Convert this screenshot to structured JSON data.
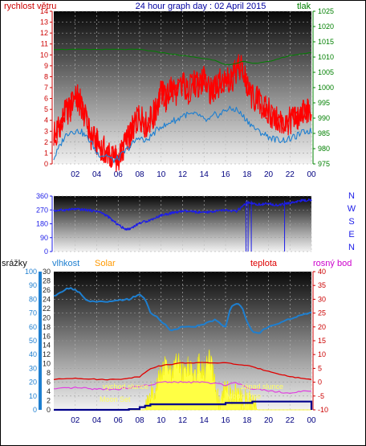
{
  "chart_data": [
    {
      "type": "line",
      "title": "24 hour graph day : 02 April 2015",
      "left_label": "rychlost větru",
      "right_label": "tlak",
      "x_ticks": [
        "02",
        "04",
        "06",
        "08",
        "10",
        "12",
        "14",
        "16",
        "18",
        "20",
        "22",
        "00"
      ],
      "ylim_left": [
        0,
        14
      ],
      "y_ticks_left": [
        0,
        1,
        2,
        3,
        4,
        5,
        6,
        7,
        8,
        9,
        10,
        11,
        12,
        13,
        14
      ],
      "ylim_right": [
        975,
        1025
      ],
      "y_ticks_right": [
        975,
        980,
        985,
        990,
        995,
        1000,
        1005,
        1010,
        1015,
        1020,
        1025
      ],
      "series": [
        {
          "key": "gust",
          "color": "#ff0000",
          "axis": "left",
          "x": [
            0.0,
            0.5,
            1.0,
            1.5,
            2.0,
            2.5,
            3.0,
            3.5,
            4.0,
            4.5,
            5.0,
            5.5,
            6.0,
            6.5,
            7.0,
            7.5,
            8.0,
            8.5,
            9.0,
            9.5,
            10.0,
            10.5,
            11.0,
            11.5,
            12.0,
            12.5,
            13.0,
            13.5,
            14.0,
            14.5,
            15.0,
            15.5,
            16.0,
            16.5,
            17.0,
            17.5,
            18.0,
            18.5,
            19.0,
            19.5,
            20.0,
            20.5,
            21.0,
            21.5,
            22.0,
            22.5,
            23.0,
            23.5,
            24.0
          ],
          "values": [
            2.5,
            3.5,
            4.5,
            5.0,
            6.5,
            5.5,
            4.0,
            2.5,
            2.0,
            1.5,
            1.0,
            0.5,
            0.5,
            1.5,
            2.5,
            3.5,
            4.5,
            3.5,
            4.0,
            5.0,
            6.5,
            6.0,
            7.0,
            6.5,
            7.5,
            6.5,
            7.5,
            7.0,
            8.0,
            6.5,
            7.0,
            7.5,
            8.0,
            7.5,
            8.5,
            9.0,
            7.0,
            6.0,
            6.0,
            5.0,
            5.0,
            4.0,
            4.0,
            3.5,
            4.0,
            4.0,
            4.5,
            5.0,
            4.0
          ]
        },
        {
          "key": "wind",
          "color": "#1e7fd0",
          "axis": "left",
          "x": [
            0.0,
            0.5,
            1.0,
            1.5,
            2.0,
            2.5,
            3.0,
            3.5,
            4.0,
            4.5,
            5.0,
            5.5,
            6.0,
            6.5,
            7.0,
            7.5,
            8.0,
            8.5,
            9.0,
            9.5,
            10.0,
            10.5,
            11.0,
            11.5,
            12.0,
            12.5,
            13.0,
            13.5,
            14.0,
            14.5,
            15.0,
            15.5,
            16.0,
            16.5,
            17.0,
            17.5,
            18.0,
            18.5,
            19.0,
            19.5,
            20.0,
            20.5,
            21.0,
            21.5,
            22.0,
            22.5,
            23.0,
            23.5,
            24.0
          ],
          "values": [
            0.5,
            1.5,
            2.5,
            3.0,
            3.0,
            3.0,
            2.5,
            2.0,
            1.0,
            0.8,
            0.8,
            0.3,
            0.5,
            1.0,
            1.5,
            2.0,
            2.5,
            2.0,
            2.5,
            3.0,
            3.5,
            3.5,
            4.0,
            4.0,
            4.5,
            4.5,
            4.5,
            4.5,
            4.0,
            4.0,
            4.5,
            4.5,
            5.0,
            5.0,
            5.0,
            4.5,
            4.0,
            3.5,
            3.0,
            2.8,
            2.5,
            2.3,
            2.2,
            2.2,
            2.3,
            2.5,
            2.8,
            3.0,
            3.0
          ]
        },
        {
          "key": "pressure",
          "color": "#008000",
          "axis": "right",
          "x": [
            0,
            2,
            4,
            6,
            8,
            10,
            12,
            14,
            15,
            16,
            16.5,
            17,
            17.5,
            18,
            18.5,
            19,
            20,
            21,
            22,
            23,
            24
          ],
          "values": [
            1012.5,
            1012.5,
            1012.5,
            1012.5,
            1012.5,
            1011.5,
            1010.5,
            1009.5,
            1009.0,
            1007.5,
            1007.5,
            1007.8,
            1008.5,
            1008.5,
            1008.0,
            1008.0,
            1008.5,
            1009.5,
            1010.5,
            1011.0,
            1011.5
          ]
        }
      ]
    },
    {
      "type": "line",
      "right_labels": [
        "N",
        "W",
        "S",
        "E",
        "N"
      ],
      "x_ticks": [
        "02",
        "04",
        "06",
        "08",
        "10",
        "12",
        "14",
        "16",
        "18",
        "20",
        "22",
        "00"
      ],
      "ylim": [
        0,
        360
      ],
      "y_ticks": [
        0,
        90,
        180,
        270,
        360
      ],
      "series": [
        {
          "key": "direction",
          "color": "#1c1ce8",
          "x": [
            0,
            1,
            2,
            3,
            4,
            4.5,
            5,
            5.5,
            6,
            6.5,
            7,
            7.5,
            8,
            9,
            10,
            11,
            12,
            13,
            14,
            15,
            16,
            17,
            18,
            19,
            20,
            21,
            22,
            23,
            24
          ],
          "values": [
            265,
            270,
            275,
            270,
            262,
            250,
            230,
            200,
            175,
            150,
            145,
            165,
            185,
            205,
            235,
            250,
            262,
            258,
            252,
            262,
            268,
            260,
            315,
            305,
            310,
            300,
            315,
            330,
            335
          ]
        }
      ]
    },
    {
      "type": "area",
      "axis_labels": {
        "rain": "srážky",
        "humidity": "vlhkost",
        "solar": "Solar",
        "temperature": "teplota",
        "dew": "rosný bod"
      },
      "x_ticks": [
        "02",
        "04",
        "06",
        "08",
        "10",
        "12",
        "14",
        "16",
        "18",
        "20",
        "22",
        "00"
      ],
      "rain_axis": {
        "ylim": [
          0,
          100
        ],
        "ticks": [
          0,
          10,
          20,
          30,
          40,
          50,
          60,
          70,
          80,
          90,
          100
        ]
      },
      "solar_axis": {
        "ylim": [
          0,
          30
        ],
        "ticks": [
          0,
          2,
          4,
          6,
          8,
          10,
          12,
          14,
          16,
          18,
          20,
          22,
          24,
          26,
          28,
          30
        ]
      },
      "temp_axis": {
        "ylim": [
          -10,
          40
        ],
        "ticks": [
          -10,
          -5,
          0,
          5,
          10,
          15,
          20,
          25,
          30,
          35,
          40
        ]
      },
      "annotations": [
        "východ slunce",
        "západ slunce",
        "Moon Set",
        "Moon Rise"
      ],
      "series": [
        {
          "key": "humidity",
          "color": "#1e7fd0",
          "axis": "rain",
          "x": [
            0,
            0.5,
            1,
            1.5,
            2,
            2.5,
            3,
            4,
            5,
            6,
            7,
            7.5,
            8,
            8.5,
            9,
            9.5,
            10,
            11,
            12,
            13,
            14,
            14.5,
            15,
            16,
            16.5,
            17,
            17.5,
            18,
            18.5,
            19,
            20,
            21,
            22,
            23,
            24
          ],
          "values": [
            82,
            84,
            87,
            88,
            87,
            84,
            79,
            78,
            78,
            79,
            80,
            82,
            83,
            81,
            70,
            68,
            64,
            57,
            60,
            60,
            62,
            64,
            65,
            60,
            75,
            77,
            75,
            64,
            57,
            55,
            60,
            63,
            66,
            68,
            71
          ]
        },
        {
          "key": "solar",
          "color": "#ffff33",
          "axis": "solar",
          "x": [
            0,
            8.5,
            9,
            9.5,
            10,
            10.5,
            11,
            11.5,
            12,
            12.5,
            13,
            13.5,
            14,
            14.5,
            15,
            15.5,
            16,
            16.5,
            17,
            17.5,
            18,
            18.5,
            19,
            24
          ],
          "values": [
            0,
            0,
            3,
            5,
            8,
            10,
            7,
            11,
            8,
            10,
            7,
            10,
            8,
            11,
            6,
            0,
            5,
            3,
            4,
            2,
            3,
            1,
            0,
            0
          ]
        },
        {
          "key": "temperature",
          "color": "#e00000",
          "axis": "temp",
          "x": [
            0,
            2,
            4,
            6,
            8,
            9,
            10,
            12,
            14,
            16,
            17,
            18,
            20,
            22,
            24
          ],
          "values": [
            1,
            1.5,
            1,
            1,
            2,
            5,
            6,
            7,
            7,
            7,
            6.5,
            6,
            4,
            2,
            1
          ]
        },
        {
          "key": "dewpoint",
          "color": "#e040e0",
          "axis": "temp",
          "x": [
            0,
            2,
            4,
            6,
            8,
            9,
            10,
            12,
            14,
            16,
            17,
            18,
            20,
            22,
            24
          ],
          "values": [
            -2.5,
            -2,
            -2.5,
            -2.5,
            -1.5,
            -1,
            0,
            0,
            0,
            -1,
            0,
            -2,
            -3,
            -4,
            -3
          ]
        },
        {
          "key": "rain",
          "color": "#00008b",
          "axis": "rain",
          "x": [
            0,
            5,
            7,
            8,
            8.5,
            9,
            16,
            18,
            18.5,
            23.5,
            24
          ],
          "values": [
            0,
            0,
            0.5,
            2,
            3,
            4,
            5,
            5,
            6,
            6,
            0
          ]
        }
      ]
    }
  ]
}
